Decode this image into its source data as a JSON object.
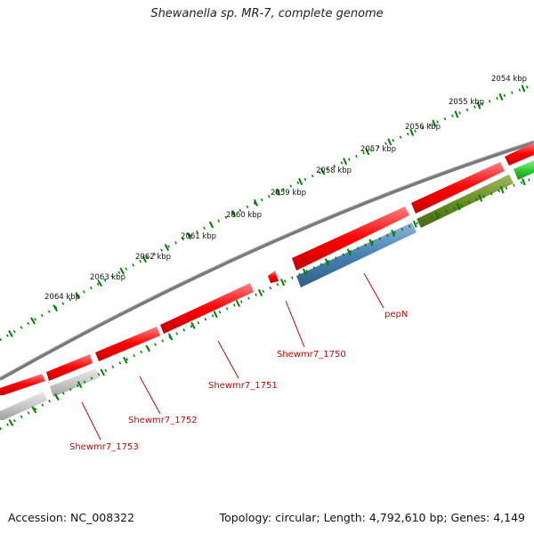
{
  "title": "Shewanella sp. MR-7, complete genome",
  "footer": {
    "accession": "Accession: NC_008322",
    "summary": "Topology: circular; Length: 4,792,610 bp; Genes: 4,149"
  },
  "scale_labels": [
    "2054 kbp",
    "2055 kbp",
    "2056 kbp",
    "2057 kbp",
    "2058 kbp",
    "2059 kbp",
    "2060 kbp",
    "2061 kbp",
    "2062 kbp",
    "2063 kbp",
    "2064 kbp"
  ],
  "gene_labels": [
    "pepN",
    "Shewmr7_1750",
    "Shewmr7_1751",
    "Shewmr7_1752",
    "Shewmr7_1753"
  ],
  "colors": {
    "forward_cds": "#ff0000",
    "backbone": "#808080",
    "pepN": "#4682b4",
    "olive_feature": "#6b8e23",
    "green_feature": "#32cd32",
    "grey_feature": "#c8c8c8",
    "ticks": "#008000",
    "label_lines": "#d40000"
  }
}
